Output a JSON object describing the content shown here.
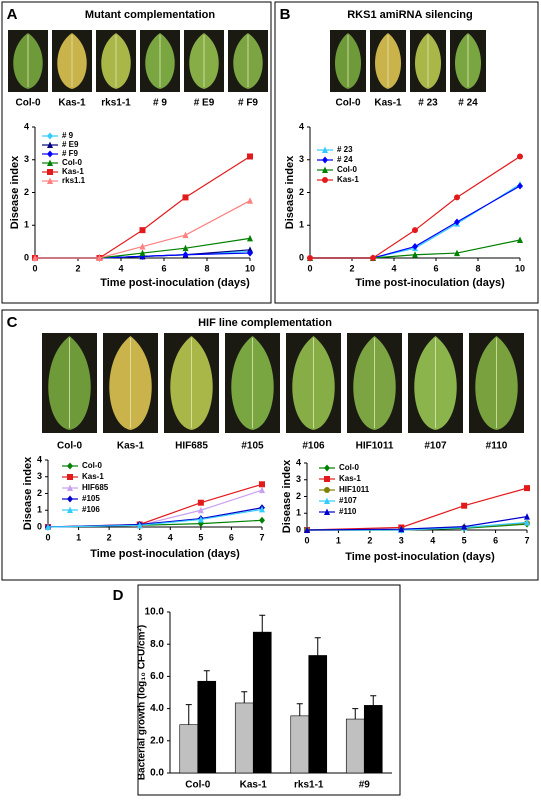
{
  "chart_data": [
    {
      "type": "line",
      "panel": "A",
      "title": "Mutant complementation",
      "samples": [
        "Col-0",
        "Kas-1",
        "rks1-1",
        "# 9",
        "# E9",
        "# F9"
      ],
      "x": [
        0,
        3,
        5,
        7,
        10
      ],
      "xlim": [
        0,
        10
      ],
      "xticks": [
        0,
        2,
        4,
        6,
        8,
        10
      ],
      "ylim": [
        0,
        4
      ],
      "yticks": [
        0,
        1,
        2,
        3,
        4
      ],
      "xlabel": "Time post-inoculation (days)",
      "ylabel": "Disease index",
      "series": [
        {
          "name": "# 9",
          "color": "#33ccff",
          "marker": "diamond",
          "values": [
            0,
            0,
            0.05,
            0.1,
            0.2
          ]
        },
        {
          "name": "# E9",
          "color": "#000080",
          "marker": "triangle",
          "values": [
            0,
            0,
            0.05,
            0.1,
            0.25
          ]
        },
        {
          "name": "# F9",
          "color": "#0000ff",
          "marker": "diamond",
          "values": [
            0,
            0,
            0.05,
            0.1,
            0.15
          ]
        },
        {
          "name": "Col-0",
          "color": "#008000",
          "marker": "triangle",
          "values": [
            0,
            0,
            0.15,
            0.3,
            0.6
          ]
        },
        {
          "name": "Kas-1",
          "color": "#e31a1c",
          "marker": "square",
          "values": [
            0,
            0,
            0.85,
            1.85,
            3.1
          ]
        },
        {
          "name": "rks1.1",
          "color": "#ff8080",
          "marker": "triangle",
          "values": [
            0,
            0,
            0.35,
            0.7,
            1.75
          ]
        }
      ]
    },
    {
      "type": "line",
      "panel": "B",
      "title": "RKS1 amiRNA silencing",
      "samples": [
        "Col-0",
        "Kas-1",
        "# 23",
        "# 24"
      ],
      "x": [
        0,
        3,
        5,
        7,
        10
      ],
      "xlim": [
        0,
        10
      ],
      "xticks": [
        0,
        2,
        4,
        6,
        8,
        10
      ],
      "ylim": [
        0,
        4
      ],
      "yticks": [
        0,
        1,
        2,
        3,
        4
      ],
      "xlabel": "Time post-inoculation (days)",
      "ylabel": "Disease index",
      "series": [
        {
          "name": "# 23",
          "color": "#33ccff",
          "marker": "triangle",
          "values": [
            0,
            0,
            0.3,
            1.05,
            2.25
          ]
        },
        {
          "name": "# 24",
          "color": "#0000ff",
          "marker": "diamond",
          "values": [
            0,
            0,
            0.35,
            1.1,
            2.2
          ]
        },
        {
          "name": "Col-0",
          "color": "#008000",
          "marker": "triangle",
          "values": [
            0,
            0,
            0.1,
            0.15,
            0.55
          ]
        },
        {
          "name": "Kas-1",
          "color": "#e31a1c",
          "marker": "circle",
          "values": [
            0,
            0,
            0.85,
            1.85,
            3.1
          ]
        }
      ]
    },
    {
      "type": "line",
      "panel": "C",
      "title": "HIF line complementation",
      "samples": [
        "Col-0",
        "Kas-1",
        "HIF685",
        "#105",
        "#106",
        "HIF1011",
        "#107",
        "#110"
      ],
      "x": [
        0,
        3,
        5,
        7
      ],
      "xlim": [
        0,
        7
      ],
      "xticks": [
        0,
        1,
        2,
        3,
        4,
        5,
        6,
        7
      ],
      "ylim": [
        0,
        4
      ],
      "yticks": [
        0,
        1,
        2,
        3,
        4
      ],
      "xlabel": "Time post-inoculation (days)",
      "ylabel": "Disease index",
      "series": [
        {
          "name": "Col-0",
          "color": "#008000",
          "marker": "diamond",
          "values": [
            0,
            0.1,
            0.2,
            0.4
          ]
        },
        {
          "name": "Kas-1",
          "color": "#e31a1c",
          "marker": "square",
          "values": [
            0,
            0.15,
            1.45,
            2.55
          ]
        },
        {
          "name": "HIF685",
          "color": "#c9a0f0",
          "marker": "triangle",
          "values": [
            0,
            0.1,
            1.0,
            2.2
          ]
        },
        {
          "name": "#105",
          "color": "#0000cc",
          "marker": "diamond",
          "values": [
            0,
            0.15,
            0.5,
            1.15
          ]
        },
        {
          "name": "#106",
          "color": "#33ccff",
          "marker": "triangle",
          "values": [
            0,
            0.1,
            0.45,
            1.05
          ]
        }
      ]
    },
    {
      "type": "line",
      "x": [
        0,
        3,
        5,
        7
      ],
      "xlim": [
        0,
        7
      ],
      "xticks": [
        0,
        1,
        2,
        3,
        4,
        5,
        6,
        7
      ],
      "ylim": [
        0,
        4
      ],
      "yticks": [
        0,
        1,
        2,
        3,
        4
      ],
      "xlabel": "Time post-inoculation (days)",
      "ylabel": "Disease index",
      "series": [
        {
          "name": "Col-0",
          "color": "#008000",
          "marker": "diamond",
          "values": [
            0,
            0,
            0.1,
            0.35
          ]
        },
        {
          "name": "Kas-1",
          "color": "#e31a1c",
          "marker": "square",
          "values": [
            0,
            0.15,
            1.45,
            2.5
          ]
        },
        {
          "name": "HIF1011",
          "color": "#808000",
          "marker": "circle",
          "values": [
            0,
            0,
            0.15,
            0.4
          ]
        },
        {
          "name": "#107",
          "color": "#33ccff",
          "marker": "triangle",
          "values": [
            0,
            0,
            0.15,
            0.45
          ]
        },
        {
          "name": "#110",
          "color": "#0000cc",
          "marker": "triangle",
          "values": [
            0,
            0.05,
            0.2,
            0.8
          ]
        }
      ]
    },
    {
      "type": "bar",
      "panel": "D",
      "categories": [
        "Col-0",
        "Kas-1",
        "rks1-1",
        "#9"
      ],
      "ylim": [
        0,
        10
      ],
      "yticks": [
        {
          "value": 0,
          "label": "0.0"
        },
        {
          "value": 2,
          "label": "2.0"
        },
        {
          "value": 4,
          "label": "4.0"
        },
        {
          "value": 6,
          "label": "6.0"
        },
        {
          "value": 8,
          "label": "8.0"
        },
        {
          "value": 10,
          "label": "10.0"
        }
      ],
      "ylabel": "Bacterial growth (log₁₀ CFU/cm²)",
      "series": [
        {
          "color": "#c0c0c0",
          "values": [
            3.0,
            4.35,
            3.55,
            3.35
          ],
          "errors": [
            1.25,
            0.7,
            0.75,
            0.65
          ]
        },
        {
          "color": "#000000",
          "values": [
            5.7,
            8.75,
            7.3,
            4.2
          ],
          "errors": [
            0.65,
            1.05,
            1.1,
            0.6
          ]
        }
      ]
    }
  ]
}
